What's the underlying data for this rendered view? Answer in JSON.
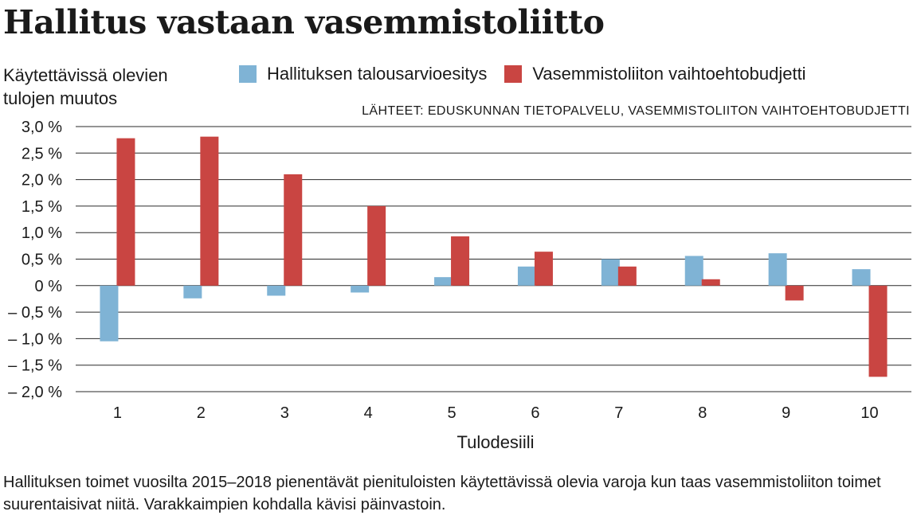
{
  "page": {
    "title": "Hallitus vastaan vasemmistoliitto",
    "ylabel_lines": [
      "Käytettävissä olevien",
      "tulojen muutos"
    ],
    "source": "LÄHTEET: EDUSKUNNAN TIETOPALVELU, VASEMMISTOLIITON VAIHTOEHTOBUDJETTI",
    "caption": "Hallituksen toimet vuosilta 2015–2018 pienentävät pienituloisten käytettävissä olevia varoja kun taas vasemmistoliiton toimet suurentaisivat niitä. Varakkaimpien kohdalla kävisi päinvastoin."
  },
  "chart_data": {
    "type": "bar",
    "title": "Hallitus vastaan vasemmistoliitto",
    "xlabel": "Tulodesiili",
    "ylabel": "Käytettävissä olevien tulojen muutos",
    "categories": [
      "1",
      "2",
      "3",
      "4",
      "5",
      "6",
      "7",
      "8",
      "9",
      "10"
    ],
    "ylim": [
      -2.0,
      3.0
    ],
    "yticks": [
      3.0,
      2.5,
      2.0,
      1.5,
      1.0,
      0.5,
      0,
      -0.5,
      -1.0,
      -1.5,
      -2.0
    ],
    "ytick_labels": [
      "3,0 %",
      "2,5 %",
      "2,0 %",
      "1,5 %",
      "1,0 %",
      "0,5 %",
      "0 %",
      "– 0,5 %",
      "– 1,0 %",
      "– 1,5 %",
      "– 2,0 %"
    ],
    "grid": true,
    "legend_position": "top",
    "series": [
      {
        "name": "Hallituksen talousarvioesitys",
        "color": "#7fb3d5",
        "values": [
          -1.05,
          -0.24,
          -0.19,
          -0.13,
          0.16,
          0.36,
          0.5,
          0.56,
          0.61,
          0.31
        ]
      },
      {
        "name": "Vasemmistoliiton vaihtoehtobudjetti",
        "color": "#c94542",
        "values": [
          2.78,
          2.81,
          2.1,
          1.5,
          0.93,
          0.64,
          0.36,
          0.12,
          -0.28,
          -1.72
        ]
      }
    ]
  }
}
